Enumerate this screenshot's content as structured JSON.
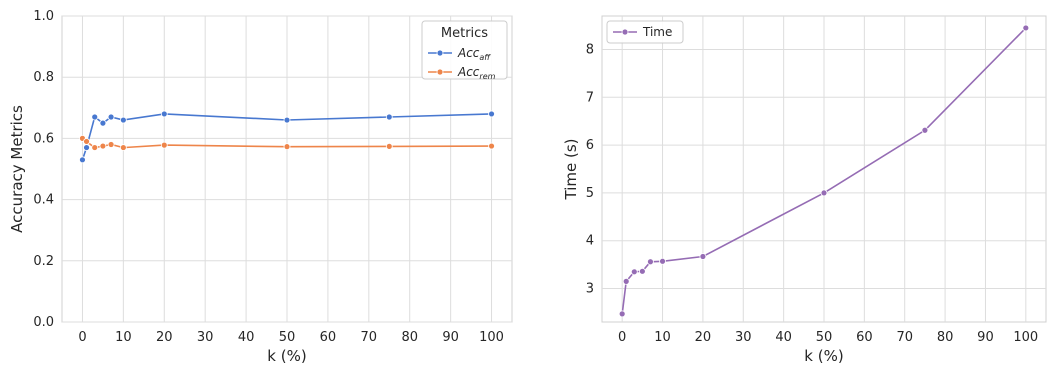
{
  "chart_data": [
    {
      "type": "line",
      "xlabel": "k (%)",
      "ylabel": "Accuracy Metrics",
      "xlim": [
        -5,
        105
      ],
      "ylim": [
        0.0,
        1.0
      ],
      "xticks": [
        "0",
        "10",
        "20",
        "30",
        "40",
        "50",
        "60",
        "70",
        "80",
        "90",
        "100"
      ],
      "yticks": [
        "0.0",
        "0.2",
        "0.4",
        "0.6",
        "0.8",
        "1.0"
      ],
      "grid": true,
      "legend": {
        "title": "Metrics",
        "placement": "top-right"
      },
      "x": [
        0,
        1,
        3,
        5,
        7,
        10,
        20,
        50,
        75,
        100
      ],
      "series": [
        {
          "name": "Acc",
          "subscript": "aff",
          "color": "#4878d0",
          "values": [
            0.53,
            0.57,
            0.67,
            0.65,
            0.67,
            0.66,
            0.68,
            0.66,
            0.67,
            0.68
          ]
        },
        {
          "name": "Acc",
          "subscript": "rem",
          "color": "#ee854a",
          "values": [
            0.6,
            0.59,
            0.57,
            0.575,
            0.58,
            0.57,
            0.578,
            0.573,
            0.574,
            0.575
          ]
        }
      ]
    },
    {
      "type": "line",
      "xlabel": "k (%)",
      "ylabel": "Time (s)",
      "xlim": [
        -5,
        105
      ],
      "ylim": [
        2.3,
        8.7
      ],
      "xticks": [
        "0",
        "10",
        "20",
        "30",
        "40",
        "50",
        "60",
        "70",
        "80",
        "90",
        "100"
      ],
      "yticks": [
        "3",
        "4",
        "5",
        "6",
        "7",
        "8"
      ],
      "grid": true,
      "legend": {
        "title": "",
        "placement": "top-left"
      },
      "x": [
        0,
        1,
        3,
        5,
        7,
        10,
        20,
        50,
        75,
        100
      ],
      "series": [
        {
          "name": "Time",
          "color": "#956cb4",
          "values": [
            2.47,
            3.15,
            3.35,
            3.36,
            3.56,
            3.57,
            3.67,
            5.0,
            6.31,
            8.45
          ]
        }
      ]
    }
  ]
}
